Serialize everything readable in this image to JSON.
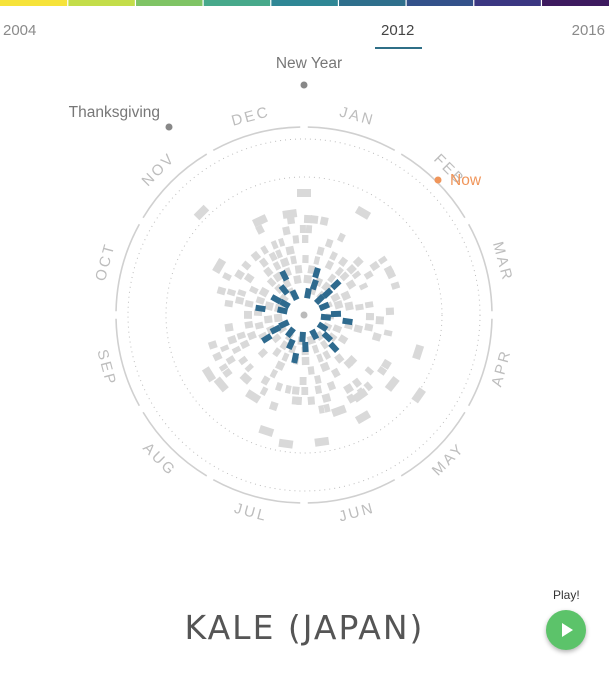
{
  "timeline": {
    "start_year": "2004",
    "current_year": "2012",
    "end_year": "2016",
    "gradient": [
      "#f6e33a",
      "#c3dd4a",
      "#7fc465",
      "#47a98b",
      "#2f8795",
      "#2f6f8c",
      "#33518a",
      "#3b3782",
      "#3d1a5f"
    ]
  },
  "chart_data": {
    "type": "radial-calendar",
    "title": "KALE (JAPAN)",
    "months": [
      "JAN",
      "FEB",
      "MAR",
      "APR",
      "MAY",
      "JUN",
      "JUL",
      "AUG",
      "SEP",
      "OCT",
      "NOV",
      "DEC"
    ],
    "annotations": [
      {
        "label": "New Year",
        "month_pos": 0.0,
        "color": "#888888"
      },
      {
        "label": "Thanksgiving",
        "month_pos": -1.25,
        "color": "#888888"
      },
      {
        "label": "Now",
        "month_pos": 1.5,
        "color": "#f0955a"
      }
    ],
    "current_year_color": "#2e6a8e",
    "past_years_color": "#d9d9d9"
  },
  "controls": {
    "play_label": "Play!",
    "play_icon": "play-icon"
  }
}
